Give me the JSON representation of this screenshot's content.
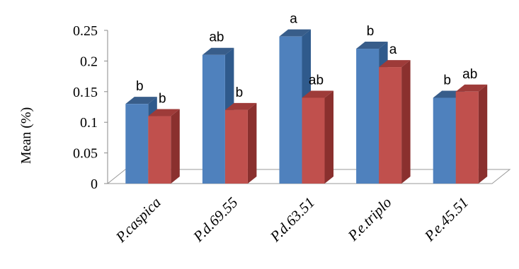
{
  "chart_data": {
    "type": "bar",
    "title": "",
    "xlabel": "",
    "ylabel": "Mean (%)",
    "ylim": [
      0,
      0.25
    ],
    "yticks": [
      "0",
      "0.05",
      "0.1",
      "0.15",
      "0.2",
      "0.25"
    ],
    "categories": [
      "P.caspica",
      "P.d.69.55",
      "P.d.63.51",
      "P.e.triplo",
      "P.e.45.51"
    ],
    "series": [
      {
        "values": [
          0.13,
          0.21,
          0.24,
          0.22,
          0.14
        ],
        "labels": [
          "b",
          "ab",
          "a",
          "b",
          "b"
        ]
      },
      {
        "values": [
          0.11,
          0.12,
          0.14,
          0.19,
          0.15
        ],
        "labels": [
          "b",
          "b",
          "ab",
          "a",
          "ab"
        ]
      }
    ],
    "grid": false,
    "legend": "none",
    "style": "3d-clustered-columns"
  },
  "colors": {
    "series0": {
      "front": "#4F81BD",
      "side": "#2F5A8C",
      "top": "#385D8A"
    },
    "series1": {
      "front": "#C0504D",
      "side": "#8A302E",
      "top": "#9E3B39"
    },
    "axis": "#888888",
    "floor": "#9a9a9a"
  }
}
